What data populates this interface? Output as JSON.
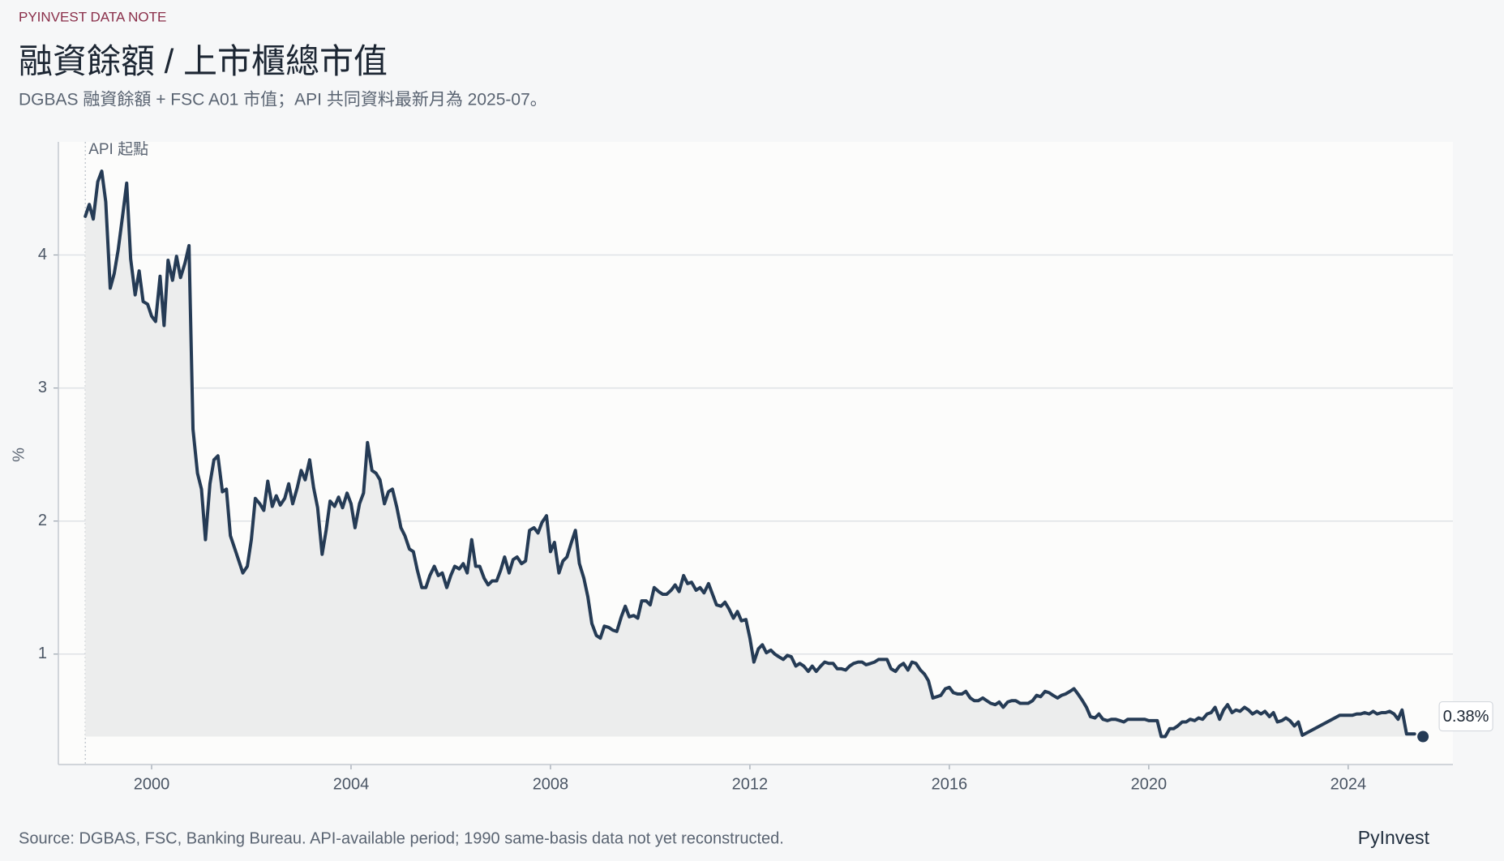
{
  "header": {
    "kicker": "PYINVEST DATA NOTE",
    "title": "融資餘額 / 上市櫃總市值",
    "subtitle": "DGBAS 融資餘額 + FSC A01 市值；API 共同資料最新月為 2025-07。"
  },
  "chart_data": {
    "type": "line",
    "y_label": "%",
    "xlim": [
      1998.13,
      2026.1
    ],
    "xticks": [
      2000,
      2004,
      2008,
      2012,
      2016,
      2020,
      2024
    ],
    "ylim": [
      0.17,
      4.85
    ],
    "yticks": [
      1,
      2,
      3,
      4
    ],
    "grid": true,
    "annotation": {
      "text": "API 起點",
      "x": 1998.67
    },
    "x": [
      1998.67,
      1998.75,
      1998.83,
      1998.92,
      1999,
      1999.08,
      1999.17,
      1999.25,
      1999.33,
      1999.42,
      1999.5,
      1999.58,
      1999.67,
      1999.75,
      1999.83,
      1999.92,
      2000,
      2000.08,
      2000.17,
      2000.25,
      2000.33,
      2000.42,
      2000.5,
      2000.58,
      2000.67,
      2000.75,
      2000.83,
      2000.92,
      2001,
      2001.08,
      2001.17,
      2001.25,
      2001.33,
      2001.42,
      2001.5,
      2001.58,
      2001.67,
      2001.75,
      2001.83,
      2001.92,
      2002,
      2002.08,
      2002.17,
      2002.25,
      2002.33,
      2002.42,
      2002.5,
      2002.58,
      2002.67,
      2002.75,
      2002.83,
      2002.92,
      2003,
      2003.08,
      2003.17,
      2003.25,
      2003.33,
      2003.42,
      2003.5,
      2003.58,
      2003.67,
      2003.75,
      2003.83,
      2003.92,
      2004,
      2004.08,
      2004.17,
      2004.25,
      2004.33,
      2004.42,
      2004.5,
      2004.58,
      2004.67,
      2004.75,
      2004.83,
      2004.92,
      2005,
      2005.08,
      2005.17,
      2005.25,
      2005.33,
      2005.42,
      2005.5,
      2005.58,
      2005.67,
      2005.75,
      2005.83,
      2005.92,
      2006,
      2006.08,
      2006.17,
      2006.25,
      2006.33,
      2006.42,
      2006.5,
      2006.58,
      2006.67,
      2006.75,
      2006.83,
      2006.92,
      2007,
      2007.08,
      2007.17,
      2007.25,
      2007.33,
      2007.42,
      2007.5,
      2007.58,
      2007.67,
      2007.75,
      2007.83,
      2007.92,
      2008,
      2008.08,
      2008.17,
      2008.25,
      2008.33,
      2008.42,
      2008.5,
      2008.58,
      2008.67,
      2008.75,
      2008.83,
      2008.92,
      2009,
      2009.08,
      2009.17,
      2009.25,
      2009.33,
      2009.42,
      2009.5,
      2009.58,
      2009.67,
      2009.75,
      2009.83,
      2009.92,
      2010,
      2010.08,
      2010.17,
      2010.25,
      2010.33,
      2010.42,
      2010.5,
      2010.58,
      2010.67,
      2010.75,
      2010.83,
      2010.92,
      2011,
      2011.08,
      2011.17,
      2011.25,
      2011.33,
      2011.42,
      2011.5,
      2011.58,
      2011.67,
      2011.75,
      2011.83,
      2011.92,
      2012,
      2012.08,
      2012.17,
      2012.25,
      2012.33,
      2012.42,
      2012.5,
      2012.58,
      2012.67,
      2012.75,
      2012.83,
      2012.92,
      2013,
      2013.08,
      2013.17,
      2013.25,
      2013.33,
      2013.42,
      2013.5,
      2013.58,
      2013.67,
      2013.75,
      2013.83,
      2013.92,
      2014,
      2014.08,
      2014.17,
      2014.25,
      2014.33,
      2014.42,
      2014.5,
      2014.58,
      2014.67,
      2014.75,
      2014.83,
      2014.92,
      2015,
      2015.08,
      2015.17,
      2015.25,
      2015.33,
      2015.42,
      2015.5,
      2015.58,
      2015.67,
      2015.75,
      2015.83,
      2015.92,
      2016,
      2016.08,
      2016.17,
      2016.25,
      2016.33,
      2016.42,
      2016.5,
      2016.58,
      2016.67,
      2016.75,
      2016.83,
      2016.92,
      2017,
      2017.08,
      2017.17,
      2017.25,
      2017.33,
      2017.42,
      2017.5,
      2017.58,
      2017.67,
      2017.75,
      2017.83,
      2017.92,
      2018,
      2018.08,
      2018.17,
      2018.25,
      2018.33,
      2018.42,
      2018.5,
      2018.58,
      2018.67,
      2018.75,
      2018.83,
      2018.92,
      2019,
      2019.08,
      2019.17,
      2019.25,
      2019.33,
      2019.42,
      2019.5,
      2019.58,
      2019.67,
      2019.75,
      2019.83,
      2019.92,
      2020,
      2020.08,
      2020.17,
      2020.25,
      2020.33,
      2020.42,
      2020.5,
      2020.58,
      2020.67,
      2020.75,
      2020.83,
      2020.92,
      2021,
      2021.08,
      2021.17,
      2021.25,
      2021.33,
      2021.42,
      2021.5,
      2021.58,
      2021.67,
      2021.75,
      2021.83,
      2021.92,
      2022,
      2022.08,
      2022.17,
      2022.25,
      2022.33,
      2022.42,
      2022.5,
      2022.58,
      2022.67,
      2022.75,
      2022.83,
      2022.92,
      2023,
      2023.08,
      2023.83,
      2023.92,
      2024,
      2024.08,
      2024.17,
      2024.25,
      2024.33,
      2024.42,
      2024.5,
      2024.58,
      2024.67,
      2024.75,
      2024.83,
      2024.92,
      2025,
      2025.08,
      2025.17,
      2025.25,
      2025.33,
      2025.42,
      2025.5
    ],
    "series": [
      {
        "color": "#253b55",
        "values": [
          4.29,
          4.38,
          4.27,
          4.55,
          4.63,
          4.4,
          3.75,
          3.86,
          4.04,
          4.3,
          4.54,
          3.97,
          3.7,
          3.88,
          3.65,
          3.63,
          3.54,
          3.5,
          3.84,
          3.47,
          3.96,
          3.81,
          3.99,
          3.83,
          3.94,
          4.07,
          2.69,
          2.36,
          2.24,
          1.86,
          2.28,
          2.46,
          2.49,
          2.22,
          2.24,
          1.89,
          1.79,
          1.7,
          1.61,
          1.66,
          1.86,
          2.17,
          2.13,
          2.08,
          2.3,
          2.11,
          2.19,
          2.12,
          2.17,
          2.28,
          2.13,
          2.25,
          2.38,
          2.31,
          2.46,
          2.25,
          2.1,
          1.75,
          1.93,
          2.15,
          2.11,
          2.18,
          2.1,
          2.21,
          2.13,
          1.95,
          2.13,
          2.21,
          2.59,
          2.38,
          2.36,
          2.31,
          2.13,
          2.22,
          2.24,
          2.1,
          1.95,
          1.89,
          1.79,
          1.77,
          1.63,
          1.5,
          1.5,
          1.59,
          1.66,
          1.59,
          1.61,
          1.5,
          1.59,
          1.66,
          1.64,
          1.68,
          1.61,
          1.86,
          1.66,
          1.66,
          1.57,
          1.52,
          1.55,
          1.55,
          1.63,
          1.73,
          1.61,
          1.71,
          1.73,
          1.68,
          1.7,
          1.93,
          1.95,
          1.91,
          1.99,
          2.04,
          1.77,
          1.84,
          1.61,
          1.7,
          1.73,
          1.84,
          1.93,
          1.68,
          1.57,
          1.43,
          1.23,
          1.14,
          1.12,
          1.21,
          1.2,
          1.18,
          1.17,
          1.28,
          1.36,
          1.28,
          1.29,
          1.27,
          1.4,
          1.4,
          1.37,
          1.5,
          1.47,
          1.45,
          1.45,
          1.48,
          1.52,
          1.47,
          1.59,
          1.53,
          1.54,
          1.48,
          1.5,
          1.46,
          1.53,
          1.45,
          1.37,
          1.36,
          1.39,
          1.34,
          1.27,
          1.32,
          1.25,
          1.26,
          1.12,
          0.94,
          1.04,
          1.07,
          1.01,
          1.03,
          1.0,
          0.98,
          0.96,
          0.99,
          0.98,
          0.91,
          0.93,
          0.91,
          0.87,
          0.91,
          0.87,
          0.91,
          0.94,
          0.93,
          0.93,
          0.89,
          0.89,
          0.88,
          0.91,
          0.93,
          0.94,
          0.94,
          0.92,
          0.93,
          0.94,
          0.96,
          0.96,
          0.96,
          0.89,
          0.87,
          0.91,
          0.93,
          0.88,
          0.94,
          0.93,
          0.88,
          0.85,
          0.8,
          0.67,
          0.68,
          0.69,
          0.74,
          0.75,
          0.71,
          0.7,
          0.7,
          0.72,
          0.67,
          0.65,
          0.65,
          0.67,
          0.65,
          0.63,
          0.62,
          0.64,
          0.6,
          0.64,
          0.65,
          0.65,
          0.63,
          0.63,
          0.63,
          0.65,
          0.69,
          0.68,
          0.72,
          0.71,
          0.69,
          0.67,
          0.69,
          0.7,
          0.72,
          0.74,
          0.7,
          0.65,
          0.6,
          0.53,
          0.52,
          0.55,
          0.51,
          0.5,
          0.51,
          0.51,
          0.5,
          0.49,
          0.51,
          0.51,
          0.51,
          0.51,
          0.51,
          0.5,
          0.5,
          0.5,
          0.38,
          0.38,
          0.44,
          0.44,
          0.46,
          0.49,
          0.49,
          0.51,
          0.5,
          0.52,
          0.51,
          0.55,
          0.56,
          0.6,
          0.51,
          0.58,
          0.62,
          0.56,
          0.58,
          0.57,
          0.6,
          0.58,
          0.55,
          0.57,
          0.55,
          0.57,
          0.53,
          0.56,
          0.49,
          0.5,
          0.52,
          0.5,
          0.46,
          0.49,
          0.39,
          0.54,
          0.54,
          0.54,
          0.54,
          0.55,
          0.55,
          0.56,
          0.55,
          0.57,
          0.55,
          0.56,
          0.56,
          0.57,
          0.55,
          0.51,
          0.58,
          0.4,
          0.4,
          0.4,
          null,
          0.38
        ],
        "value_labels": [
          null,
          null,
          null,
          null,
          null,
          null,
          null,
          null,
          null,
          null,
          null,
          null,
          null,
          null,
          null,
          null,
          null,
          null,
          null,
          null,
          null,
          null,
          null,
          null,
          null,
          null,
          null,
          null,
          null,
          null,
          null,
          null,
          null,
          null,
          null,
          null,
          null,
          null,
          null,
          null,
          null,
          null,
          null,
          null,
          null,
          null,
          null,
          null,
          null,
          null,
          null,
          null,
          null,
          null,
          null,
          null,
          null,
          null,
          null,
          null,
          null,
          null,
          null,
          null,
          null,
          null,
          null,
          null,
          null,
          null,
          null,
          null,
          null,
          null,
          null,
          null,
          null,
          null,
          null,
          null,
          null,
          null,
          null,
          null,
          null,
          null,
          null,
          null,
          null,
          null,
          null,
          null,
          null,
          null,
          null,
          null,
          null,
          null,
          null,
          null,
          null,
          null,
          null,
          null,
          null,
          null,
          null,
          null,
          null,
          null,
          null,
          null,
          null,
          null,
          null,
          null,
          null,
          null,
          null,
          null,
          null,
          null,
          null,
          null,
          null,
          null,
          null,
          null,
          null,
          null,
          null,
          null,
          null,
          null,
          null,
          null,
          null,
          null,
          null,
          null,
          null,
          null,
          null,
          null,
          null,
          null,
          null,
          null,
          null,
          null,
          null,
          null,
          null,
          null,
          null,
          null,
          null,
          null,
          null,
          null,
          null,
          null,
          null,
          null,
          null,
          null,
          null,
          null,
          null,
          null,
          null,
          null,
          null,
          null,
          null,
          null,
          null,
          null,
          null,
          null,
          null,
          null,
          null,
          null,
          null,
          null,
          null,
          null,
          null,
          null,
          null,
          null,
          null,
          null,
          null,
          null,
          null,
          null,
          null,
          null,
          null,
          null,
          null,
          null,
          null,
          null,
          null,
          null,
          null,
          null,
          null,
          null,
          null,
          null,
          null,
          null,
          null,
          null,
          null,
          null,
          null,
          null,
          null,
          null,
          null,
          null,
          null,
          null,
          null,
          null,
          null,
          null,
          null,
          null,
          null,
          null,
          null,
          null,
          null,
          null,
          null,
          null,
          null,
          null,
          null,
          null,
          null,
          null,
          null,
          null,
          null,
          null,
          null,
          null,
          null,
          null,
          null,
          null,
          null,
          null,
          null,
          null,
          null,
          null,
          null,
          null,
          null,
          null,
          null,
          null,
          null,
          null,
          null,
          null,
          null,
          null,
          null,
          null,
          null,
          null,
          null,
          null,
          null,
          null,
          null,
          null,
          null,
          null,
          null,
          null,
          null,
          null,
          null,
          null,
          null,
          null,
          null,
          null,
          null,
          null,
          null,
          null,
          null,
          null,
          null,
          null,
          null,
          null,
          null,
          null,
          null,
          null,
          null,
          null,
          "0.38%"
        ]
      }
    ]
  },
  "footer": {
    "source": "Source: DGBAS, FSC, Banking Bureau. API-available period; 1990 same-basis data not yet reconstructed.",
    "brand": "PyInvest"
  }
}
